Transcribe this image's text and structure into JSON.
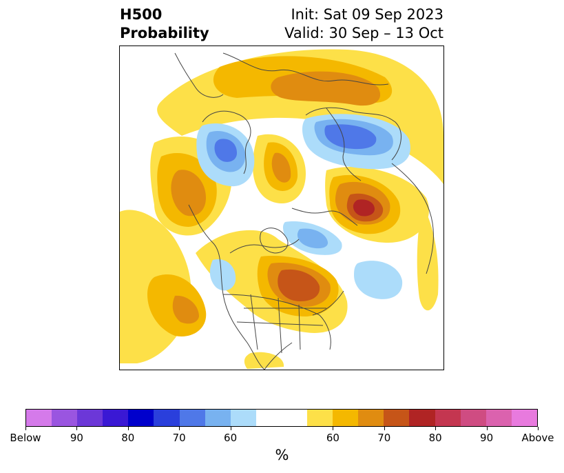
{
  "title": {
    "left_line1": "H500",
    "left_line2": "Probability",
    "right_line1": "Init: Sat 09 Sep 2023",
    "right_line2": "Valid: 30 Sep – 13 Oct"
  },
  "colorbar": {
    "colors": [
      "#d57aea",
      "#9a55e0",
      "#6c37d8",
      "#3a18d4",
      "#0000cc",
      "#2a3fdc",
      "#4f78e8",
      "#78b2f0",
      "#acdcfa",
      "#ffffff",
      "#fde048",
      "#f4b800",
      "#e08c10",
      "#c65518",
      "#b02424",
      "#c43650",
      "#cf4c82",
      "#db62ae",
      "#e87ade"
    ],
    "tick_labels": [
      "Below",
      "90",
      "80",
      "70",
      "60",
      "60",
      "70",
      "80",
      "90",
      "Above"
    ],
    "unit": "%"
  },
  "map": {
    "palette": {
      "below_60": "#acdcfa",
      "below_70": "#78b2f0",
      "below_80": "#4f78e8",
      "above_50": "#fde048",
      "above_60": "#f4b800",
      "above_70": "#e08c10",
      "above_80": "#c65518",
      "above_90": "#b02424",
      "border": "#444444"
    }
  }
}
